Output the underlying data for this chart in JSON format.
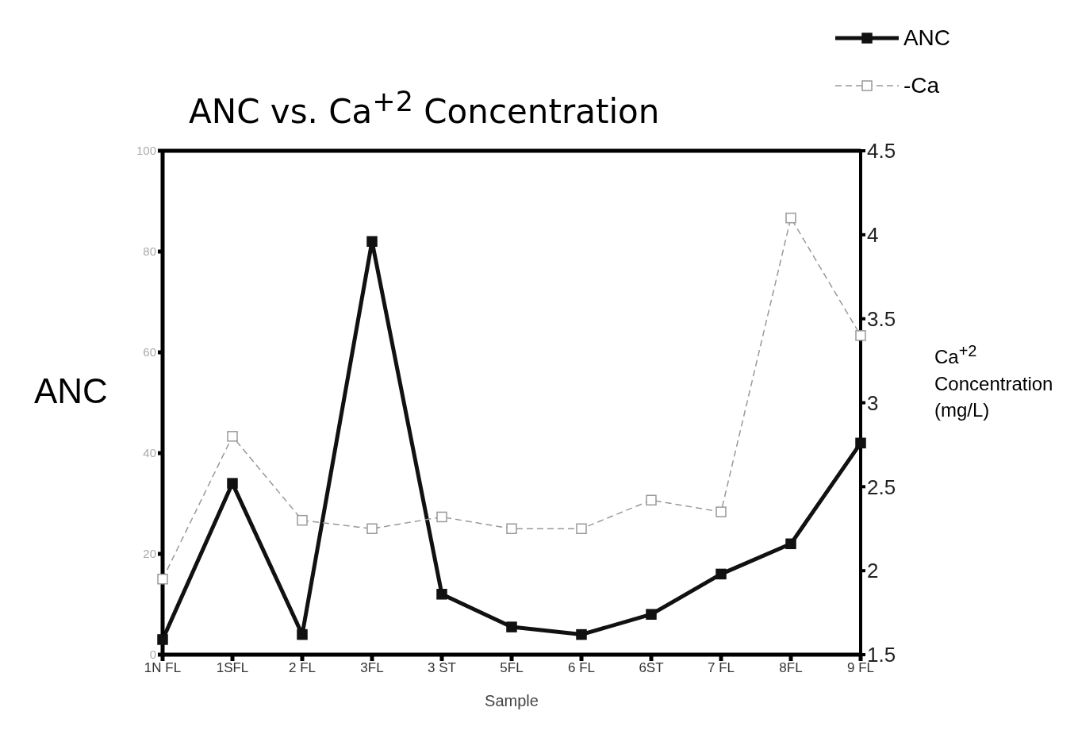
{
  "chart_data": {
    "type": "line",
    "title": "ANC vs. Ca$^{+2}$ Concentration",
    "xlabel": "Sample",
    "ylabel": "ANC",
    "y2label": "Ca$^{+2}$ Concentration (mg/L)",
    "categories": [
      "1N FL",
      "1SFL",
      "2 FL",
      "3FL",
      "3 ST",
      "5FL",
      "6 FL",
      "6ST",
      "7 FL",
      "8FL",
      "9 FL"
    ],
    "series": [
      {
        "name": "ANC",
        "color": "#111111",
        "marker": "square",
        "line_style": "solid",
        "values": [
          3,
          34,
          4,
          82,
          12,
          5.5,
          4,
          8,
          16,
          22,
          42
        ]
      },
      {
        "name": "-Ca",
        "color": "#999999",
        "marker": "square",
        "line_style": "dashed",
        "axis": "y2",
        "values": [
          1.95,
          2.8,
          2.3,
          2.25,
          2.32,
          2.25,
          2.25,
          2.42,
          2.35,
          4.1,
          3.4
        ]
      }
    ],
    "ylim": [
      0,
      100
    ],
    "yticks": [
      0,
      20,
      40,
      60,
      80,
      100
    ],
    "y2lim": [
      1.5,
      4.5
    ],
    "y2ticks": [
      1.5,
      2,
      2.5,
      3,
      3.5,
      4,
      4.5
    ],
    "grid": false,
    "legend": "top right"
  }
}
